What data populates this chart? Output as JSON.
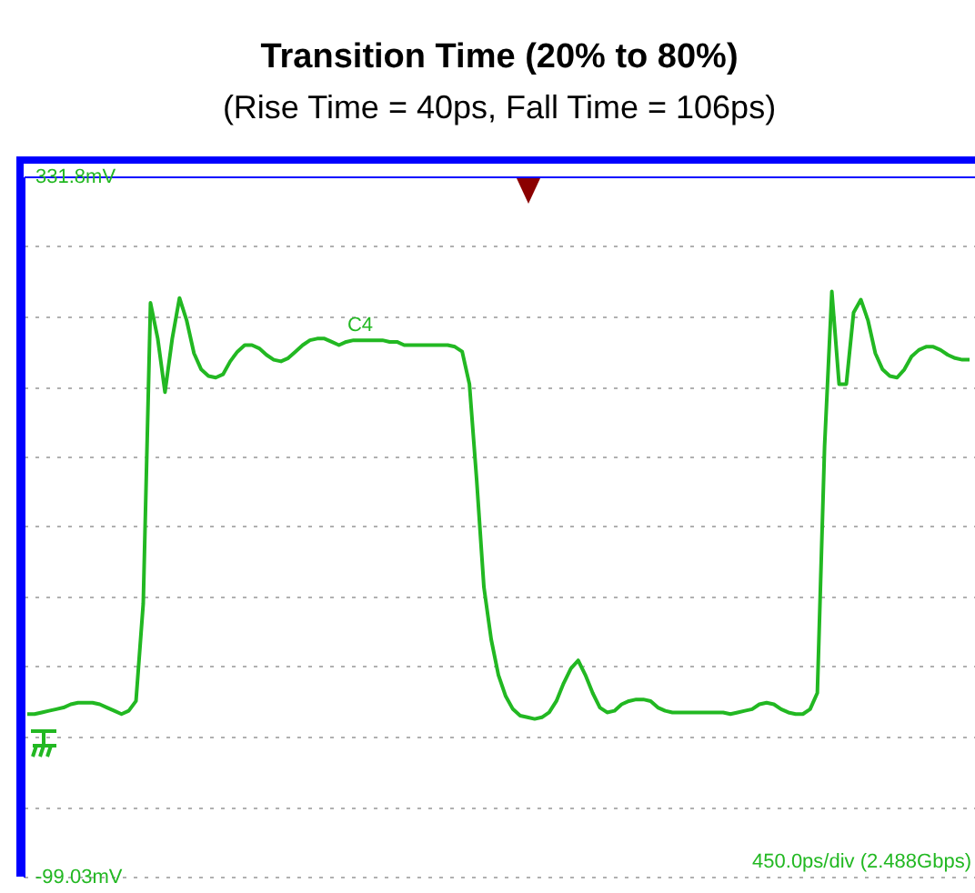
{
  "chart_data": {
    "type": "line",
    "title": "Transition Time (20% to 80%)",
    "subtitle": "(Rise Time = 40ps, Fall Time = 106ps)",
    "categories": [
      null,
      null,
      null,
      null,
      null,
      null,
      null,
      null,
      null,
      null,
      null,
      null,
      null,
      null,
      null,
      null,
      null,
      null,
      null,
      null,
      null,
      null,
      null,
      null,
      null,
      null,
      null,
      null,
      null,
      null,
      null,
      null,
      null,
      null,
      null,
      null,
      null,
      null,
      null,
      null,
      null,
      null,
      null,
      null,
      null,
      null,
      null,
      null,
      null,
      null,
      null,
      null,
      null,
      null,
      null,
      null,
      null,
      null,
      null,
      null,
      null,
      null,
      null,
      null,
      null,
      null,
      null,
      null,
      null,
      null,
      null,
      null,
      null,
      null,
      null,
      null,
      null,
      null,
      null,
      null,
      null,
      null,
      null,
      null,
      null,
      null,
      null,
      null,
      null,
      null,
      null,
      null,
      null,
      null,
      null,
      null,
      null,
      null,
      null,
      null,
      null,
      null,
      null,
      null,
      null,
      null,
      null,
      null,
      null,
      null,
      null,
      null,
      null,
      null,
      null,
      null,
      null,
      null,
      null,
      null,
      null,
      null,
      null,
      null,
      null,
      null,
      null,
      null,
      null,
      null,
      null
    ],
    "series": [
      {
        "color": "#22b822",
        "values": [
          1,
          1,
          2,
          3,
          4,
          5,
          7,
          8,
          8,
          8,
          7,
          5,
          3,
          1,
          3,
          9,
          69,
          254,
          232,
          199,
          232,
          257,
          243,
          223,
          213,
          209,
          208,
          210,
          218,
          224,
          228,
          228,
          226,
          222,
          219,
          218,
          220,
          224,
          228,
          231,
          232,
          232,
          230,
          228,
          230,
          231,
          231,
          231,
          231,
          231,
          230,
          230,
          228,
          228,
          228,
          228,
          228,
          228,
          228,
          227,
          224,
          204,
          145,
          79,
          47,
          25,
          12,
          4,
          0,
          -1,
          -2,
          -1,
          2,
          9,
          20,
          29,
          34,
          25,
          14,
          5,
          2,
          3,
          7,
          9,
          10,
          10,
          9,
          5,
          3,
          2,
          2,
          2,
          2,
          2,
          2,
          2,
          2,
          1,
          2,
          3,
          4,
          7,
          8,
          7,
          4,
          2,
          1,
          1,
          4,
          14,
          166,
          261,
          204,
          204,
          248,
          256,
          243,
          223,
          213,
          209,
          208,
          213,
          221,
          225,
          227,
          227,
          225,
          222,
          220,
          219,
          219
        ]
      }
    ],
    "ylim": [
      -99.03,
      331.8
    ],
    "yticks": [
      {
        "value": -99.03,
        "label": "-99.03mV"
      },
      {
        "value": -55.95,
        "label": null
      },
      {
        "value": -12.86,
        "label": null
      },
      {
        "value": 30.22,
        "label": null
      },
      {
        "value": 73.3,
        "label": null
      },
      {
        "value": 116.39,
        "label": null
      },
      {
        "value": 159.47,
        "label": null
      },
      {
        "value": 202.55,
        "label": null
      },
      {
        "value": 245.63,
        "label": null
      },
      {
        "value": 288.72,
        "label": null
      },
      {
        "value": 331.8,
        "label": "331.8mV"
      }
    ],
    "grid": "y",
    "annotations": [
      "450.0ps/div (2.488Gbps)",
      "C4"
    ]
  }
}
